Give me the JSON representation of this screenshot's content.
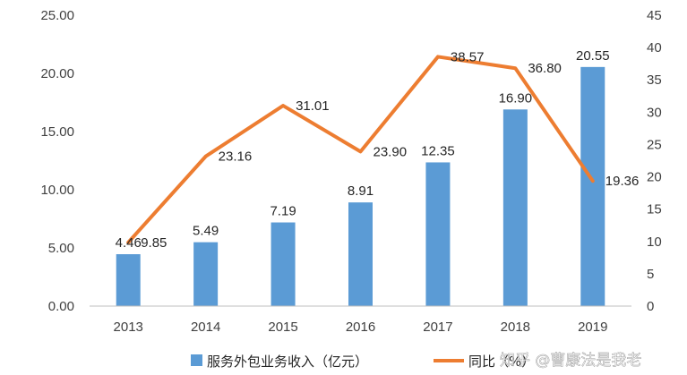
{
  "watermark": "知乎 @曹康法是我老",
  "chart_data": {
    "type": "bar",
    "categories": [
      "2013",
      "2014",
      "2015",
      "2016",
      "2017",
      "2018",
      "2019"
    ],
    "series": [
      {
        "name": "服务外包业务收入（亿元）",
        "type": "bar",
        "axis": "left",
        "color": "#5B9BD5",
        "values": [
          4.46,
          5.49,
          7.19,
          8.91,
          12.35,
          16.9,
          20.55
        ],
        "labels": [
          "4.46",
          "5.49",
          "7.19",
          "8.91",
          "12.35",
          "16.90",
          "20.55"
        ]
      },
      {
        "name": "同比（%）",
        "type": "line",
        "axis": "right",
        "color": "#ED7D31",
        "values": [
          9.85,
          23.16,
          31.01,
          23.9,
          38.57,
          36.8,
          19.36
        ],
        "labels": [
          "9.85",
          "23.16",
          "31.01",
          "23.90",
          "38.57",
          "36.80",
          "19.36"
        ]
      }
    ],
    "y_left": {
      "min": 0,
      "max": 25,
      "ticks": [
        "0.00",
        "5.00",
        "10.00",
        "15.00",
        "20.00",
        "25.00"
      ],
      "tick_values": [
        0,
        5,
        10,
        15,
        20,
        25
      ]
    },
    "y_right": {
      "min": 0,
      "max": 45,
      "ticks": [
        "0",
        "5",
        "10",
        "15",
        "20",
        "25",
        "30",
        "35",
        "40",
        "45"
      ],
      "tick_values": [
        0,
        5,
        10,
        15,
        20,
        25,
        30,
        35,
        40,
        45
      ]
    },
    "grid": false,
    "legend": "bottom"
  }
}
